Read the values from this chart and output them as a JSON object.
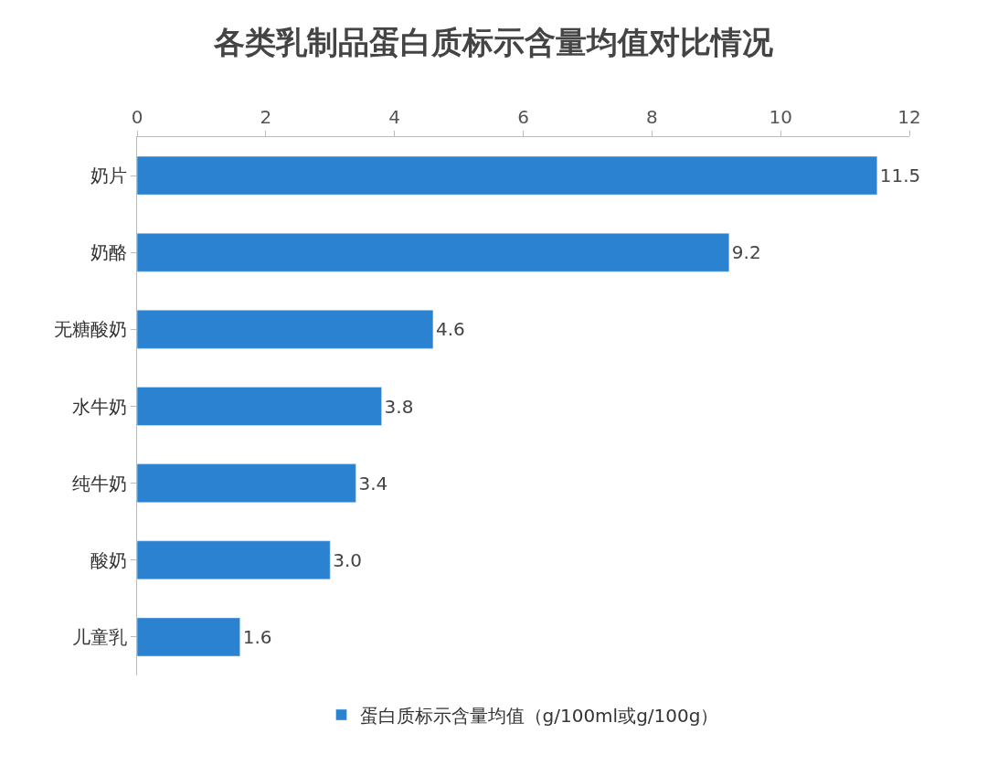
{
  "chart_data": {
    "type": "bar",
    "orientation": "horizontal",
    "title": "各类乳制品蛋白质标示含量均值对比情况",
    "categories": [
      "奶片",
      "奶酪",
      "无糖酸奶",
      "水牛奶",
      "纯牛奶",
      "酸奶",
      "儿童乳"
    ],
    "series": [
      {
        "name": "蛋白质标示含量均值（g/100ml或g/100g）",
        "color": "#2a82d0",
        "values": [
          11.5,
          9.2,
          4.6,
          3.8,
          3.4,
          3.0,
          1.6
        ],
        "value_labels": [
          "11.5",
          "9.2",
          "4.6",
          "3.8",
          "3.4",
          "3.0",
          "1.6"
        ]
      }
    ],
    "xlim": [
      0,
      12
    ],
    "xticks": [
      0,
      2,
      4,
      6,
      8,
      10,
      12
    ],
    "legend": "bottom"
  }
}
